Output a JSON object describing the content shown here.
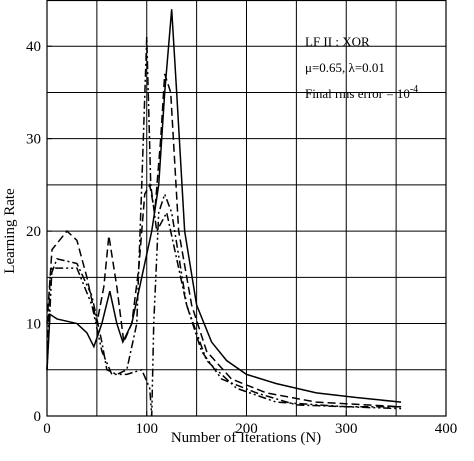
{
  "chart_data": {
    "type": "line",
    "x_label": "Number of Iterations (N)",
    "y_label": "Learning Rate",
    "annotations": [
      "LF II : XOR",
      "μ=0.65, λ=0.01",
      {
        "text": "Final rms error = 10",
        "superscript": "-4"
      }
    ],
    "xlim": [
      0,
      400
    ],
    "ylim": [
      0,
      45
    ],
    "xticks": [
      0,
      100,
      200,
      300,
      400
    ],
    "yticks": [
      0,
      10,
      20,
      30,
      40
    ],
    "xgrid": [
      50,
      100,
      150,
      200,
      250,
      300,
      350
    ],
    "ygrid": [
      5,
      10,
      15,
      20,
      25,
      30,
      35,
      40
    ],
    "grid": true,
    "series": [
      {
        "color": "#000000",
        "dash": "none",
        "x": [
          0,
          3,
          10,
          30,
          40,
          47,
          55,
          63,
          70,
          76,
          85,
          95,
          105,
          112,
          118,
          125,
          130,
          138,
          150,
          165,
          180,
          200,
          230,
          270,
          310,
          355
        ],
        "values": [
          5,
          11,
          10.5,
          10,
          9,
          7.5,
          10,
          13.5,
          10,
          8,
          10,
          15,
          20,
          25,
          35,
          44,
          35,
          20,
          12,
          8,
          6,
          4.5,
          3.5,
          2.5,
          2,
          1.5
        ]
      },
      {
        "color": "#000000",
        "dash": "8,4",
        "x": [
          0,
          5,
          20,
          30,
          40,
          50,
          57,
          62,
          70,
          77,
          85,
          92,
          98,
          103,
          108,
          114,
          118,
          124,
          132,
          145,
          160,
          185,
          220,
          270,
          355
        ],
        "values": [
          10,
          18,
          20,
          19,
          15,
          10,
          14,
          19.5,
          14,
          8,
          10,
          16,
          24,
          25,
          22,
          30,
          37,
          35,
          20,
          12,
          7,
          4,
          2.5,
          1.5,
          1
        ]
      },
      {
        "color": "#000000",
        "dash": "8,3,2,3",
        "x": [
          0,
          3,
          10,
          30,
          45,
          55,
          60,
          70,
          80,
          90,
          95,
          100,
          104,
          110,
          120,
          128,
          140,
          155,
          175,
          210,
          250,
          300,
          355
        ],
        "values": [
          5,
          15,
          17,
          16.5,
          13,
          8,
          5,
          4.5,
          5,
          10,
          25,
          41,
          25,
          20,
          22,
          18,
          12,
          7,
          4,
          2.5,
          1.2,
          1,
          1
        ]
      },
      {
        "color": "#000000",
        "dash": "8,3,2,3,2,3",
        "x": [
          0,
          5,
          30,
          45,
          55,
          65,
          80,
          95,
          103,
          105,
          107,
          112,
          118,
          125,
          140,
          160,
          190,
          230,
          300,
          355
        ],
        "values": [
          5,
          16,
          16,
          12,
          7,
          4.5,
          4.5,
          5,
          3,
          0,
          10,
          22,
          24,
          22,
          12,
          6,
          3,
          1.5,
          1,
          0.8
        ]
      }
    ]
  }
}
